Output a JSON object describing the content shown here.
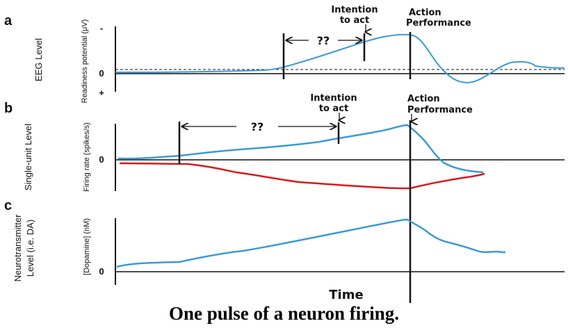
{
  "caption": "One pulse of a neuron firing.",
  "panels": {
    "a": {
      "letter": "a",
      "side_label": "EEG Level",
      "axis_label": "Readiness potential (μV)",
      "ticks": [
        "-",
        "0",
        "+"
      ],
      "intention": [
        "Intention",
        "to act"
      ],
      "action": [
        "Action",
        "Performance"
      ],
      "interval": "??"
    },
    "b": {
      "letter": "b",
      "side_label": "Single-unit Level",
      "axis_label": "Firing rate (spikes/s)",
      "ticks": [
        "0"
      ],
      "intention": [
        "Intention",
        "to act"
      ],
      "action": [
        "Action",
        "Performance"
      ],
      "interval": "??"
    },
    "c": {
      "letter": "c",
      "side_label": [
        "Neurotransmitter",
        "Level (i.e. DA)"
      ],
      "axis_label": "[Dopamine] (nM)",
      "ticks": [
        "0"
      ]
    }
  },
  "x_axis_label": "Time",
  "colors": {
    "blue": "#3a9ad9",
    "red": "#d7191c",
    "ink": "#111111"
  }
}
